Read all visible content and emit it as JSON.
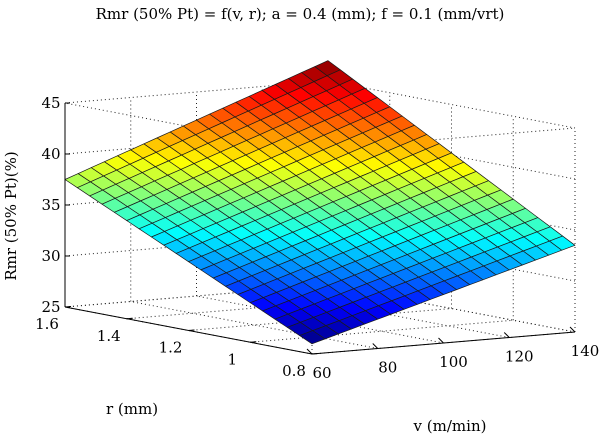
{
  "chart_data": {
    "type": "surface",
    "title": "Rmr (50% Pt) = f(v, r); a = 0.4 (mm); f = 0.1 (mm/vrt)",
    "xlabel": "v (m/min)",
    "ylabel": "r (mm)",
    "zlabel": "Rmr (50% Pt)(%)",
    "xlim": [
      60,
      140
    ],
    "ylim": [
      0.8,
      1.6
    ],
    "zlim": [
      25,
      45
    ],
    "x_ticks": [
      "60",
      "80",
      "100",
      "120",
      "140"
    ],
    "y_ticks": [
      "0.8",
      "1",
      "1.2",
      "1.4",
      "1.6"
    ],
    "z_ticks": [
      "25",
      "30",
      "35",
      "40",
      "45"
    ],
    "grid": true,
    "colormap": "jet",
    "grid_resolution": [
      20,
      20
    ],
    "corner_values": [
      {
        "v": 60,
        "r": 0.8,
        "z": 26.0
      },
      {
        "v": 140,
        "r": 0.8,
        "z": 33.5
      },
      {
        "v": 60,
        "r": 1.6,
        "z": 37.5
      },
      {
        "v": 140,
        "r": 1.6,
        "z": 47.0
      }
    ]
  }
}
